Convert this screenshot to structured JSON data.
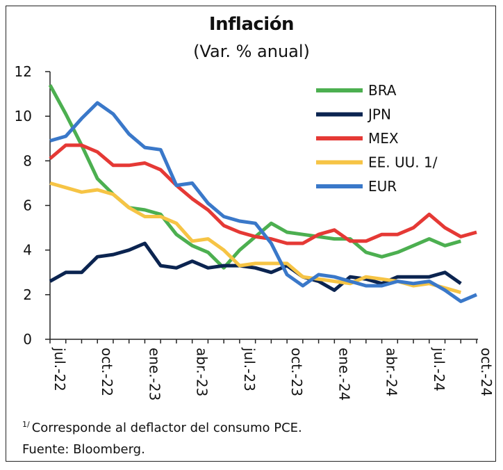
{
  "chart_data": {
    "type": "line",
    "title": "Inflación",
    "subtitle": "(Var. % anual)",
    "xlabel": "",
    "ylabel": "",
    "ylim": [
      0,
      12
    ],
    "yticks": [
      "0",
      "2",
      "4",
      "6",
      "8",
      "10",
      "12"
    ],
    "x": [
      "jul.-22",
      "ago.-22",
      "sep.-22",
      "oct.-22",
      "nov.-22",
      "dic.-22",
      "ene.-23",
      "feb.-23",
      "mar.-23",
      "abr.-23",
      "may.-23",
      "jun.-23",
      "jul.-23",
      "ago.-23",
      "sep.-23",
      "oct.-23",
      "nov.-23",
      "dic.-23",
      "ene.-24",
      "feb.-24",
      "mar.-24",
      "abr.-24",
      "may.-24",
      "jun.-24",
      "jul.-24",
      "ago.-24",
      "sep.-24",
      "oct.-24"
    ],
    "xtick_labels": [
      "jul.-22",
      "oct.-22",
      "ene.-23",
      "abr.-23",
      "jul.-23",
      "oct.-23",
      "ene.-24",
      "abr.-24",
      "jul.-24",
      "oct.-24"
    ],
    "xtick_indices": [
      0,
      3,
      6,
      9,
      12,
      15,
      18,
      21,
      24,
      27
    ],
    "legend_position": "top-right",
    "grid": false,
    "series": [
      {
        "name": "BRA",
        "color": "#4caf50",
        "values": [
          11.4,
          10.1,
          8.7,
          7.2,
          6.5,
          5.9,
          5.8,
          5.6,
          4.7,
          4.2,
          3.9,
          3.2,
          4.0,
          4.6,
          5.2,
          4.8,
          4.7,
          4.6,
          4.5,
          4.5,
          3.9,
          3.7,
          3.9,
          4.2,
          4.5,
          4.2,
          4.4,
          null
        ]
      },
      {
        "name": "JPN",
        "color": "#0b2450",
        "values": [
          2.6,
          3.0,
          3.0,
          3.7,
          3.8,
          4.0,
          4.3,
          3.3,
          3.2,
          3.5,
          3.2,
          3.3,
          3.3,
          3.2,
          3.0,
          3.3,
          2.8,
          2.6,
          2.2,
          2.8,
          2.7,
          2.5,
          2.8,
          2.8,
          2.8,
          3.0,
          2.5,
          null
        ]
      },
      {
        "name": "MEX",
        "color": "#e53935",
        "values": [
          8.1,
          8.7,
          8.7,
          8.4,
          7.8,
          7.8,
          7.9,
          7.6,
          6.9,
          6.3,
          5.8,
          5.1,
          4.8,
          4.6,
          4.5,
          4.3,
          4.3,
          4.7,
          4.9,
          4.4,
          4.4,
          4.7,
          4.7,
          5.0,
          5.6,
          5.0,
          4.6,
          4.8
        ]
      },
      {
        "name": "EE. UU. 1/",
        "color": "#f6c445",
        "values": [
          7.0,
          6.8,
          6.6,
          6.7,
          6.5,
          5.9,
          5.5,
          5.5,
          5.2,
          4.4,
          4.5,
          4.0,
          3.3,
          3.4,
          3.4,
          3.4,
          2.8,
          2.7,
          2.6,
          2.5,
          2.8,
          2.7,
          2.6,
          2.4,
          2.5,
          2.3,
          2.1,
          null
        ]
      },
      {
        "name": "EUR",
        "color": "#3a78c9",
        "values": [
          8.9,
          9.1,
          9.9,
          10.6,
          10.1,
          9.2,
          8.6,
          8.5,
          6.9,
          7.0,
          6.1,
          5.5,
          5.3,
          5.2,
          4.3,
          2.9,
          2.4,
          2.9,
          2.8,
          2.6,
          2.4,
          2.4,
          2.6,
          2.5,
          2.6,
          2.2,
          1.7,
          2.0
        ]
      }
    ]
  },
  "footnote": {
    "marker": "1/",
    "text": "Corresponde al deflactor del consumo PCE."
  },
  "source": "Fuente: Bloomberg."
}
